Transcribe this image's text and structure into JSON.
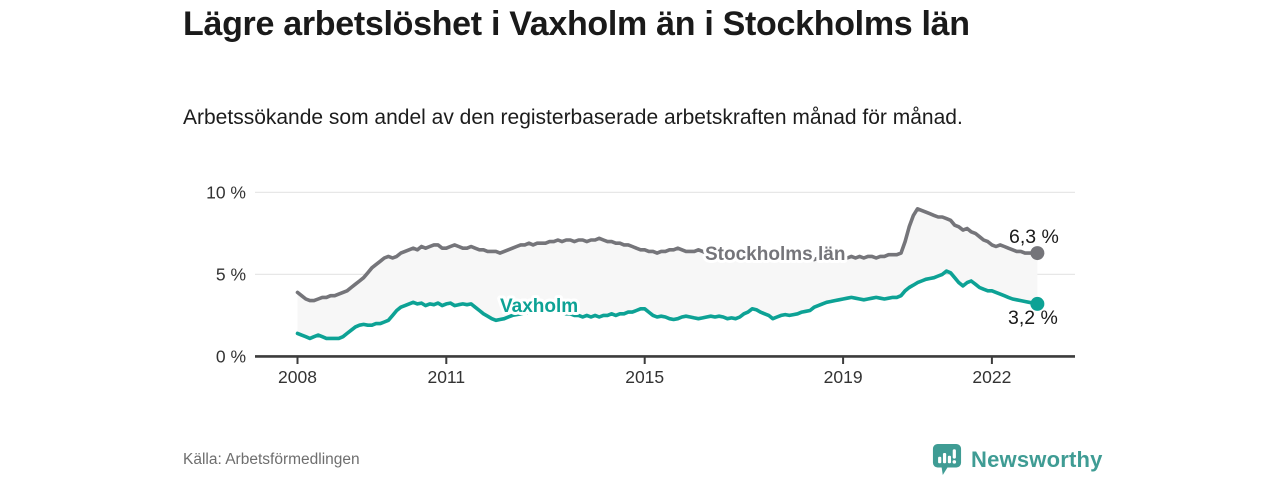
{
  "header": {
    "title": "Lägre arbetslöshet i Vaxholm än i Stockholms län",
    "subtitle": "Arbetssökande som andel av den registerbaserade arbetskraften månad för månad."
  },
  "footer": {
    "source": "Källa: Arbetsförmedlingen",
    "brand": "Newsworthy",
    "brand_color": "#3f9c94",
    "logo_icon": "speech-bubble-bar-chart-exclamation"
  },
  "chart_data": {
    "type": "line",
    "title": "Lägre arbetslöshet i Vaxholm än i Stockholms län",
    "xlabel": "",
    "ylabel": "",
    "ylim": [
      0,
      10
    ],
    "x_start": "2008-01",
    "x_end": "2022-12",
    "points_per_year": 12,
    "grid": "horizontal",
    "legend_position": "inline-labels",
    "area_fill_between_series": true,
    "area_color": "#f7f7f7",
    "y_tick_labels": [
      "0 %",
      "5 %",
      "10 %"
    ],
    "x_tick_labels": [
      "2008",
      "2011",
      "2015",
      "2019",
      "2022"
    ],
    "series": [
      {
        "name": "Stockholms län",
        "color": "#75757a",
        "end_label": "6,3 %",
        "end_value": 6.3,
        "values": [
          3.9,
          3.7,
          3.5,
          3.4,
          3.4,
          3.5,
          3.6,
          3.6,
          3.7,
          3.7,
          3.8,
          3.9,
          4.0,
          4.2,
          4.4,
          4.6,
          4.8,
          5.1,
          5.4,
          5.6,
          5.8,
          6.0,
          6.1,
          6.0,
          6.1,
          6.3,
          6.4,
          6.5,
          6.6,
          6.5,
          6.7,
          6.6,
          6.7,
          6.8,
          6.8,
          6.6,
          6.6,
          6.7,
          6.8,
          6.7,
          6.6,
          6.6,
          6.7,
          6.6,
          6.5,
          6.5,
          6.4,
          6.4,
          6.4,
          6.3,
          6.4,
          6.5,
          6.6,
          6.7,
          6.8,
          6.8,
          6.9,
          6.8,
          6.9,
          6.9,
          6.9,
          7.0,
          7.0,
          7.1,
          7.0,
          7.1,
          7.1,
          7.0,
          7.1,
          7.1,
          7.0,
          7.1,
          7.1,
          7.2,
          7.1,
          7.0,
          7.0,
          6.9,
          6.9,
          6.8,
          6.8,
          6.7,
          6.6,
          6.5,
          6.5,
          6.4,
          6.4,
          6.3,
          6.4,
          6.4,
          6.5,
          6.5,
          6.6,
          6.5,
          6.4,
          6.4,
          6.4,
          6.5,
          6.4,
          6.3,
          6.3,
          6.2,
          6.3,
          6.3,
          6.4,
          6.4,
          6.3,
          6.3,
          6.2,
          6.2,
          6.3,
          6.2,
          6.1,
          6.1,
          6.2,
          6.1,
          6.1,
          6.0,
          6.1,
          6.1,
          6.1,
          6.0,
          6.0,
          6.1,
          6.0,
          5.9,
          6.0,
          6.0,
          6.1,
          6.0,
          6.0,
          6.0,
          6.0,
          6.0,
          6.1,
          6.0,
          6.1,
          6.0,
          6.1,
          6.1,
          6.0,
          6.1,
          6.1,
          6.2,
          6.2,
          6.2,
          6.3,
          7.0,
          7.9,
          8.6,
          9.0,
          8.9,
          8.8,
          8.7,
          8.6,
          8.5,
          8.5,
          8.4,
          8.3,
          8.0,
          7.9,
          7.7,
          7.8,
          7.6,
          7.5,
          7.3,
          7.1,
          7.0,
          6.8,
          6.7,
          6.8,
          6.7,
          6.6,
          6.5,
          6.4,
          6.4,
          6.3,
          6.3,
          6.3,
          6.3
        ]
      },
      {
        "name": "Vaxholm",
        "color": "#0da295",
        "end_label": "3,2 %",
        "end_value": 3.2,
        "values": [
          1.4,
          1.3,
          1.2,
          1.1,
          1.2,
          1.3,
          1.2,
          1.1,
          1.1,
          1.1,
          1.1,
          1.2,
          1.4,
          1.6,
          1.8,
          1.9,
          1.95,
          1.9,
          1.9,
          2.0,
          2.0,
          2.1,
          2.2,
          2.5,
          2.8,
          3.0,
          3.1,
          3.2,
          3.3,
          3.2,
          3.25,
          3.1,
          3.2,
          3.15,
          3.25,
          3.1,
          3.2,
          3.25,
          3.1,
          3.15,
          3.2,
          3.15,
          3.2,
          3.0,
          2.8,
          2.6,
          2.45,
          2.3,
          2.2,
          2.25,
          2.3,
          2.4,
          2.5,
          2.55,
          2.6,
          2.65,
          2.7,
          2.75,
          2.7,
          2.75,
          2.8,
          2.9,
          2.8,
          2.7,
          2.7,
          2.6,
          2.6,
          2.5,
          2.5,
          2.4,
          2.5,
          2.4,
          2.5,
          2.4,
          2.5,
          2.5,
          2.6,
          2.5,
          2.6,
          2.6,
          2.7,
          2.7,
          2.8,
          2.9,
          2.9,
          2.7,
          2.5,
          2.4,
          2.45,
          2.4,
          2.3,
          2.25,
          2.3,
          2.4,
          2.45,
          2.4,
          2.35,
          2.3,
          2.35,
          2.4,
          2.45,
          2.4,
          2.45,
          2.4,
          2.3,
          2.35,
          2.3,
          2.4,
          2.6,
          2.7,
          2.9,
          2.85,
          2.7,
          2.6,
          2.5,
          2.3,
          2.4,
          2.5,
          2.55,
          2.5,
          2.55,
          2.6,
          2.7,
          2.75,
          2.8,
          3.0,
          3.1,
          3.2,
          3.3,
          3.35,
          3.4,
          3.45,
          3.5,
          3.55,
          3.6,
          3.55,
          3.5,
          3.45,
          3.5,
          3.55,
          3.6,
          3.55,
          3.5,
          3.55,
          3.6,
          3.6,
          3.7,
          4.0,
          4.2,
          4.35,
          4.5,
          4.6,
          4.7,
          4.75,
          4.8,
          4.9,
          5.0,
          5.2,
          5.1,
          4.8,
          4.5,
          4.3,
          4.5,
          4.6,
          4.4,
          4.2,
          4.1,
          4.0,
          4.0,
          3.9,
          3.8,
          3.7,
          3.6,
          3.5,
          3.45,
          3.4,
          3.35,
          3.3,
          3.25,
          3.2
        ]
      }
    ]
  }
}
